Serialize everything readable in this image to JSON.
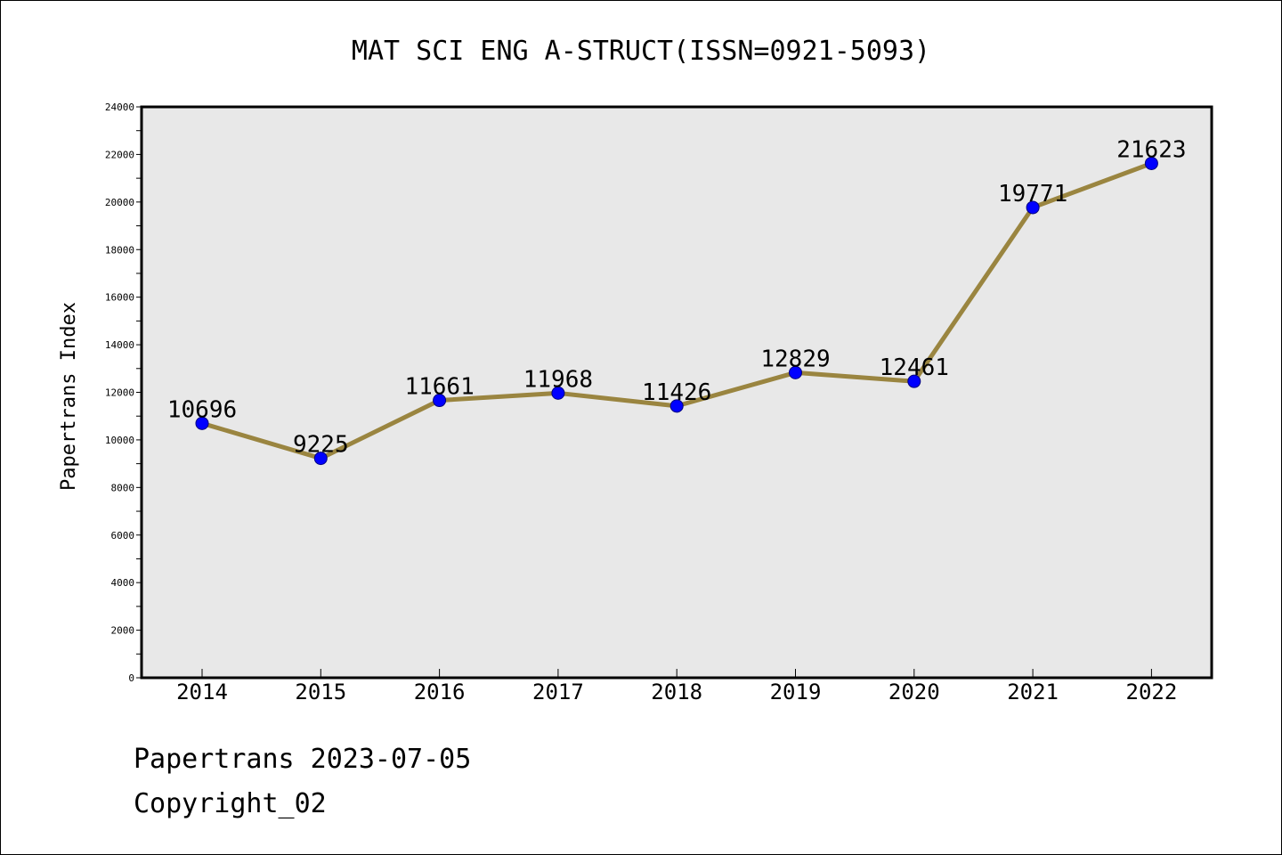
{
  "chart_data": {
    "type": "line",
    "title": "MAT SCI ENG A-STRUCT(ISSN=0921-5093)",
    "xlabel": "",
    "ylabel": "Papertrans Index",
    "categories": [
      "2014",
      "2015",
      "2016",
      "2017",
      "2018",
      "2019",
      "2020",
      "2021",
      "2022"
    ],
    "series": [
      {
        "values": [
          10696,
          9225,
          11661,
          11968,
          11426,
          12829,
          12461,
          19771,
          21623
        ],
        "data_labels": [
          "10696",
          "9225",
          "11661",
          "11968",
          "11426",
          "12829",
          "12461",
          "19771",
          "21623"
        ]
      }
    ],
    "ylim": [
      0,
      24000
    ],
    "yticks": [
      0,
      2000,
      4000,
      6000,
      8000,
      10000,
      12000,
      14000,
      16000,
      18000,
      20000,
      22000,
      24000
    ],
    "ytick_labels": [
      "0",
      "2000",
      "4000",
      "6000",
      "8000",
      "10000",
      "12000",
      "14000",
      "16000",
      "18000",
      "20000",
      "22000",
      "24000"
    ],
    "grid": false,
    "colors": {
      "plot_background": "#e8e8e8",
      "line": "#9a8540",
      "marker_fill": "#0000ff",
      "marker_edge": "#000080"
    }
  },
  "footer": {
    "line1": "Papertrans 2023-07-05",
    "line2": "Copyright_02"
  }
}
